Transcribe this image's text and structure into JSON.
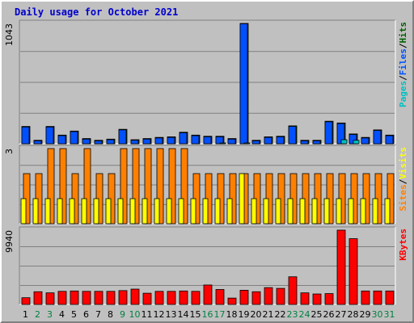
{
  "colors": {
    "title": "#0000cc",
    "panel_bg": "#c0c0c0",
    "plot_bg": "#c0c0c0",
    "grid": "#808080",
    "pages": "#00c0c0",
    "files": "#0050ff",
    "hits": "#006000",
    "sites": "#ff8000",
    "visits": "#ffff00",
    "kbytes": "#ff0000",
    "day_weekday": "#000000",
    "day_weekend": "#008040"
  },
  "chart_data": {
    "type": "bar",
    "title": "Daily usage for October 2021",
    "x": [
      "1",
      "2",
      "3",
      "4",
      "5",
      "6",
      "7",
      "8",
      "9",
      "10",
      "11",
      "12",
      "13",
      "14",
      "15",
      "16",
      "17",
      "18",
      "19",
      "20",
      "21",
      "22",
      "23",
      "24",
      "25",
      "26",
      "27",
      "28",
      "29",
      "30",
      "31"
    ],
    "weekend_days": [
      "2",
      "3",
      "9",
      "10",
      "16",
      "17",
      "23",
      "24",
      "30",
      "31"
    ],
    "panels": [
      {
        "id": "hits",
        "ymax": 1043,
        "ymax_label": "1043",
        "legend": [
          "Pages",
          "/",
          "Files",
          "/",
          "Hits"
        ],
        "legend_colors": [
          "#00c0c0",
          "#000000",
          "#0050ff",
          "#000000",
          "#006000"
        ],
        "series": [
          {
            "name": "Hits",
            "color": "#006000",
            "values": [
              150,
              30,
              150,
              75,
              110,
              45,
              30,
              40,
              125,
              35,
              45,
              55,
              60,
              100,
              75,
              65,
              65,
              45,
              1043,
              30,
              60,
              65,
              155,
              30,
              30,
              195,
              180,
              85,
              55,
              120,
              75
            ]
          },
          {
            "name": "Files",
            "color": "#0050ff",
            "values": [
              145,
              25,
              145,
              70,
              105,
              40,
              25,
              35,
              120,
              30,
              40,
              50,
              55,
              95,
              70,
              60,
              60,
              40,
              1040,
              25,
              55,
              60,
              150,
              25,
              25,
              190,
              175,
              80,
              50,
              115,
              70
            ]
          },
          {
            "name": "Pages",
            "color": "#00c0c0",
            "values": [
              0,
              0,
              0,
              0,
              0,
              0,
              0,
              0,
              0,
              0,
              0,
              0,
              0,
              0,
              0,
              0,
              5,
              0,
              5,
              0,
              0,
              0,
              0,
              0,
              0,
              0,
              35,
              30,
              0,
              0,
              0
            ]
          }
        ]
      },
      {
        "id": "visits",
        "ymax": 3,
        "ymax_label": "3",
        "legend": [
          "Sites",
          "/",
          "Visits"
        ],
        "legend_colors": [
          "#ff8000",
          "#000000",
          "#ffff00"
        ],
        "series": [
          {
            "name": "Sites",
            "color": "#ff8000",
            "values": [
              2,
              2,
              3,
              3,
              2,
              3,
              2,
              2,
              3,
              3,
              3,
              3,
              3,
              3,
              2,
              2,
              2,
              2,
              2,
              2,
              2,
              2,
              2,
              2,
              2,
              2,
              2,
              2,
              2,
              2,
              2
            ]
          },
          {
            "name": "Visits",
            "color": "#ffff00",
            "values": [
              1,
              1,
              1,
              1,
              1,
              1,
              1,
              1,
              1,
              1,
              1,
              1,
              1,
              1,
              1,
              1,
              1,
              1,
              2,
              1,
              1,
              1,
              1,
              1,
              1,
              1,
              1,
              1,
              1,
              1,
              1
            ]
          }
        ]
      },
      {
        "id": "kbytes",
        "ymax": 9940,
        "ymax_label": "9940",
        "legend": [
          "KBytes"
        ],
        "legend_colors": [
          "#ff0000"
        ],
        "series": [
          {
            "name": "KBytes",
            "color": "#ff0000",
            "values": [
              900,
              1700,
              1550,
              1750,
              1800,
              1750,
              1750,
              1750,
              1850,
              2050,
              1500,
              1750,
              1750,
              1800,
              1750,
              2600,
              2000,
              850,
              1900,
              1700,
              2250,
              2150,
              3700,
              1550,
              1400,
              1450,
              9940,
              8800,
              1800,
              1800,
              1800
            ]
          }
        ]
      }
    ]
  }
}
